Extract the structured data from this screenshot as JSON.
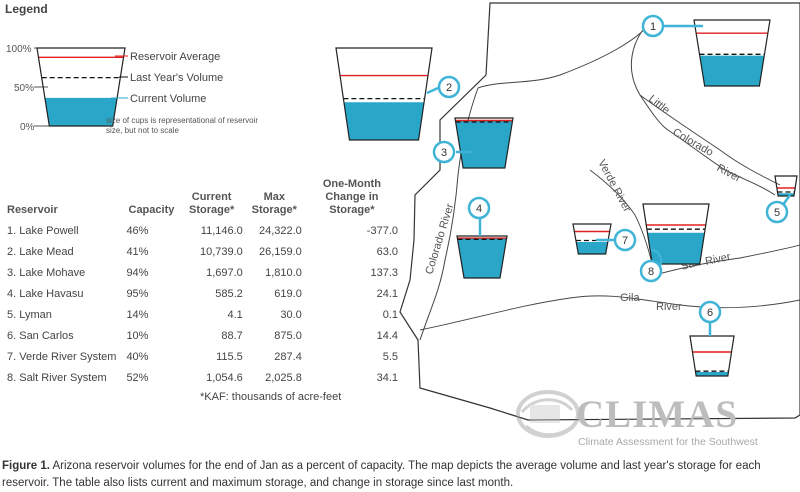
{
  "legend": {
    "title": "Legend",
    "axis": [
      "100%",
      "50%",
      "0%"
    ],
    "items": [
      {
        "label": "Reservoir Average",
        "color": "#e02020"
      },
      {
        "label": "Last Year's Volume",
        "color": "#111111"
      },
      {
        "label": "Current Volume",
        "color": "#2aa6c8"
      }
    ],
    "note": "size of cups is representational of reservoir size, but not to scale"
  },
  "table": {
    "headers": [
      "Reservoir",
      "Capacity",
      "Current Storage*",
      "Max Storage*",
      "One-Month Change in Storage*"
    ],
    "rows": [
      [
        "1. Lake Powell",
        "46%",
        "11,146.0",
        "24,322.0",
        "-377.0"
      ],
      [
        "2. Lake Mead",
        "41%",
        "10,739.0",
        "26,159.0",
        "63.0"
      ],
      [
        "3. Lake Mohave",
        "94%",
        "1,697.0",
        "1,810.0",
        "137.3"
      ],
      [
        "4. Lake Havasu",
        "95%",
        "585.2",
        "619.0",
        "24.1"
      ],
      [
        "5. Lyman",
        "14%",
        "4.1",
        "30.0",
        "0.1"
      ],
      [
        "6. San Carlos",
        "10%",
        "88.7",
        "875.0",
        "14.4"
      ],
      [
        "7. Verde River System",
        "40%",
        "115.5",
        "287.4",
        "5.5"
      ],
      [
        "8. Salt River System",
        "52%",
        "1,054.6",
        "2,025.8",
        "34.1"
      ]
    ],
    "note": "*KAF: thousands of acre-feet"
  },
  "map": {
    "rivers": [
      "Little",
      "Colorado",
      "River",
      "Verde River",
      "Colorado River",
      "Salt",
      "River",
      "Gila",
      "River"
    ],
    "markers": [
      "1",
      "2",
      "3",
      "4",
      "5",
      "6",
      "7",
      "8"
    ],
    "colors": {
      "water": "#2aa6c8",
      "average": "#e02020",
      "last_year": "#111111",
      "callout": "#3fb4d6",
      "state": "#333333",
      "river": "#444444"
    }
  },
  "cups": [
    {
      "id": "1",
      "capacity": 0.46,
      "average": 0.8,
      "last_year": 0.48
    },
    {
      "id": "2",
      "capacity": 0.41,
      "average": 0.7,
      "last_year": 0.45
    },
    {
      "id": "3",
      "capacity": 0.94,
      "average": 0.95,
      "last_year": 0.92
    },
    {
      "id": "4",
      "capacity": 0.95,
      "average": 0.95,
      "last_year": 0.92
    },
    {
      "id": "5",
      "capacity": 0.14,
      "average": 0.4,
      "last_year": 0.2
    },
    {
      "id": "6",
      "capacity": 0.1,
      "average": 0.6,
      "last_year": 0.12
    },
    {
      "id": "7",
      "capacity": 0.4,
      "average": 0.75,
      "last_year": 0.45
    },
    {
      "id": "8",
      "capacity": 0.52,
      "average": 0.65,
      "last_year": 0.58
    }
  ],
  "logo": {
    "name": "CLIMAS",
    "subtitle": "Climate Assessment for the Southwest"
  },
  "caption": {
    "label": "Figure 1.",
    "text": "Arizona reservoir volumes for the end of Jan as a percent of capacity. The map depicts the average volume and last year's storage for each reservoir. The table also lists current and maximum storage, and change in storage since last month."
  }
}
